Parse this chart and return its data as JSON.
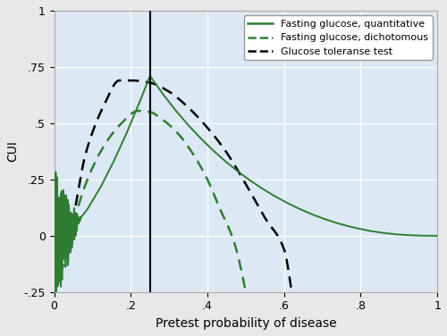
{
  "title": "",
  "xlabel": "Pretest probability of disease",
  "ylabel": "CUI",
  "xlim": [
    0,
    1
  ],
  "ylim": [
    -0.25,
    1.0
  ],
  "xticks": [
    0,
    0.2,
    0.4,
    0.6,
    0.8,
    1.0
  ],
  "xticklabels": [
    "0",
    ".2",
    ".4",
    ".6",
    ".8",
    "1"
  ],
  "yticks": [
    -0.25,
    0,
    0.25,
    0.5,
    0.75,
    1.0
  ],
  "yticklabels": [
    "-.25",
    "0",
    ".25",
    ".5",
    ".75",
    "1"
  ],
  "vline_x": 0.25,
  "background_color": "#dce9f5",
  "grid_color": "#ffffff",
  "legend_labels": [
    "Fasting glucose, quantitative",
    "Fasting glucose, dichotomous",
    "Glucose toleranse test"
  ],
  "green_color": "#2e7d32",
  "black_color": "#000000",
  "pt": 0.25
}
